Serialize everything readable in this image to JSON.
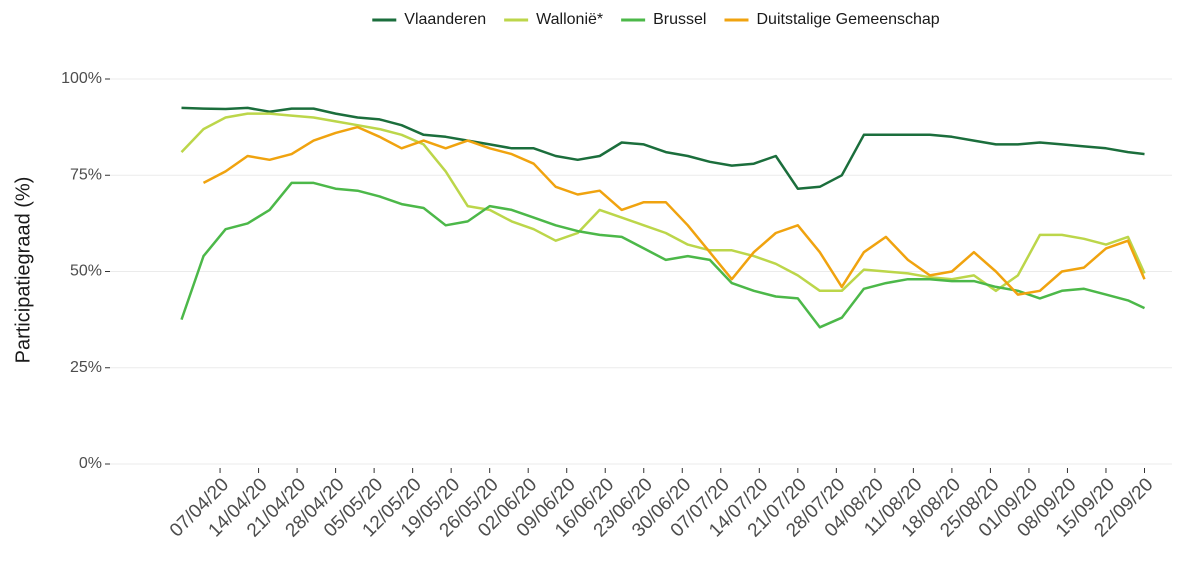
{
  "chart_data": {
    "type": "line",
    "y_label": "Participatiegraad (%)",
    "x": [
      "31/03/20",
      "04/04/20",
      "08/04/20",
      "12/04/20",
      "16/04/20",
      "20/04/20",
      "24/04/20",
      "28/04/20",
      "02/05/20",
      "06/05/20",
      "10/05/20",
      "14/05/20",
      "18/05/20",
      "22/05/20",
      "26/05/20",
      "30/05/20",
      "03/06/20",
      "07/06/20",
      "11/06/20",
      "15/06/20",
      "19/06/20",
      "23/06/20",
      "27/06/20",
      "01/07/20",
      "05/07/20",
      "09/07/20",
      "13/07/20",
      "17/07/20",
      "21/07/20",
      "25/07/20",
      "29/07/20",
      "02/08/20",
      "06/08/20",
      "10/08/20",
      "14/08/20",
      "18/08/20",
      "22/08/20",
      "26/08/20",
      "30/08/20",
      "03/09/20",
      "07/09/20",
      "11/09/20",
      "15/09/20",
      "19/09/20",
      "22/09/20"
    ],
    "series": [
      {
        "name": "Vlaanderen",
        "color": "#1b6e3c",
        "values": [
          92.5,
          92.3,
          92.2,
          92.5,
          91.5,
          92.3,
          92.3,
          91,
          90,
          89.5,
          88,
          85.5,
          85,
          84,
          83,
          82,
          82,
          80,
          79,
          80,
          83.5,
          83,
          81,
          80,
          78.5,
          77.5,
          78,
          80,
          71.5,
          72,
          75,
          85.5,
          85.5,
          85.5,
          85.5,
          85,
          84,
          83,
          83,
          83.5,
          83,
          82.5,
          82,
          81,
          80.5
        ]
      },
      {
        "name": "Wallonië*",
        "color": "#bcd64a",
        "values": [
          81,
          87,
          90,
          91,
          91,
          90.5,
          90,
          89,
          88,
          87,
          85.5,
          83,
          76,
          67,
          66,
          63,
          61,
          58,
          60,
          66,
          64,
          62,
          60,
          57,
          55.5,
          55.5,
          54,
          52,
          49,
          45,
          45,
          50.5,
          50,
          49.5,
          48.5,
          48,
          49,
          45,
          49,
          59.5,
          59.5,
          58.5,
          57,
          59,
          49.5
        ]
      },
      {
        "name": "Brussel",
        "color": "#4cb849",
        "values": [
          37.5,
          54,
          61,
          62.5,
          66,
          73,
          73,
          71.5,
          71,
          69.5,
          67.5,
          66.5,
          62,
          63,
          67,
          66,
          64,
          62,
          60.5,
          59.5,
          59,
          56,
          53,
          54,
          53,
          47,
          45,
          43.5,
          43,
          35.5,
          38,
          45.5,
          47,
          48,
          48,
          47.5,
          47.5,
          46,
          45,
          43,
          45,
          45.5,
          44,
          42.5,
          40.5
        ]
      },
      {
        "name": "Duitstalige Gemeenschap",
        "color": "#f0a30f",
        "values": [
          null,
          73,
          76,
          80,
          79,
          80.5,
          84,
          86,
          87.5,
          85,
          82,
          84,
          82,
          84,
          82,
          80.5,
          78,
          72,
          70,
          71,
          66,
          68,
          68,
          62,
          55,
          48,
          55,
          60,
          62,
          55,
          46,
          55,
          59,
          53,
          49,
          50,
          55,
          50,
          44,
          45,
          50,
          51,
          56,
          58,
          48
        ]
      }
    ],
    "xlim": [
      "18/03/20",
      "27/09/20"
    ],
    "xticks": [
      "07/04/20",
      "14/04/20",
      "21/04/20",
      "28/04/20",
      "05/05/20",
      "12/05/20",
      "19/05/20",
      "26/05/20",
      "02/06/20",
      "09/06/20",
      "16/06/20",
      "23/06/20",
      "30/06/20",
      "07/07/20",
      "14/07/20",
      "21/07/20",
      "28/07/20",
      "04/08/20",
      "11/08/20",
      "18/08/20",
      "25/08/20",
      "01/09/20",
      "08/09/20",
      "15/09/20",
      "22/09/20"
    ],
    "ylim": [
      0,
      100
    ],
    "yticks": [
      {
        "value": 0,
        "label": "0%"
      },
      {
        "value": 25,
        "label": "25%"
      },
      {
        "value": 50,
        "label": "50%"
      },
      {
        "value": 75,
        "label": "75%"
      },
      {
        "value": 100,
        "label": "100%"
      }
    ],
    "grid": true,
    "legend": "top"
  }
}
